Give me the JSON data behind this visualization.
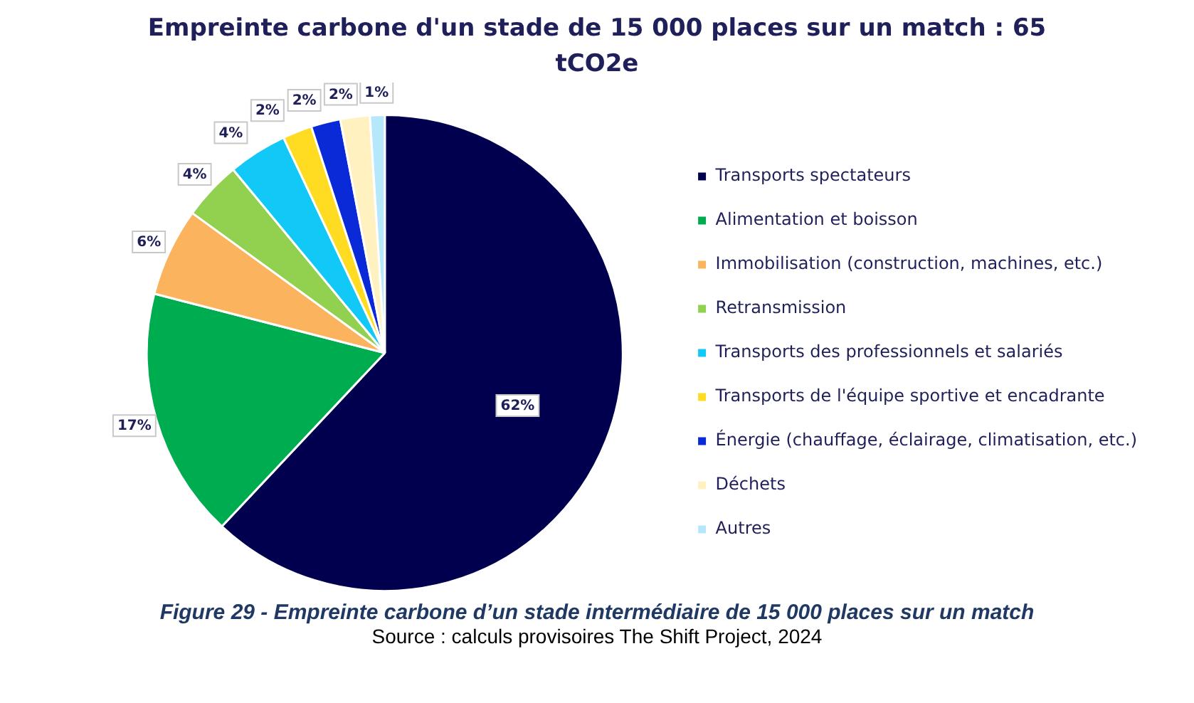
{
  "chart_data": {
    "type": "pie",
    "title": "Empreinte carbone d'un stade de 15 000 places sur un match : 65 tCO2e",
    "categories": [
      "Transports spectateurs",
      "Alimentation et boisson",
      "Immobilisation (construction, machines, etc.)",
      "Retransmission",
      "Transports des professionnels et salariés",
      "Transports de l'équipe sportive et encadrante",
      "Énergie (chauffage, éclairage, climatisation, etc.)",
      "Déchets",
      "Autres"
    ],
    "values": [
      62,
      17,
      6,
      4,
      4,
      2,
      2,
      2,
      1
    ],
    "colors": [
      "#00004f",
      "#00ac50",
      "#fbb35e",
      "#92d050",
      "#12c8f7",
      "#ffdc22",
      "#0a2ad8",
      "#fff2c0",
      "#b6e8fb"
    ],
    "value_labels": [
      "62%",
      "17%",
      "6%",
      "4%",
      "4%",
      "2%",
      "2%",
      "2%",
      "1%"
    ],
    "legend": "right",
    "annotations": [
      "Figure 29 - Empreinte carbone d’un stade intermédiaire de 15 000 places sur un match",
      "Source : calculs provisoires The Shift Project, 2024"
    ]
  }
}
